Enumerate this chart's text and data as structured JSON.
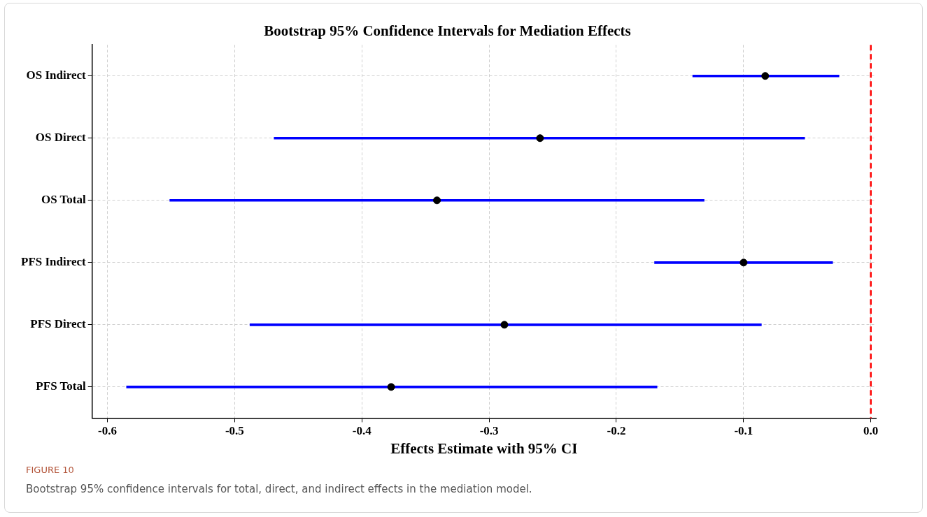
{
  "chart_data": {
    "type": "bar",
    "title": "Bootstrap 95% Confidence Intervals for Mediation Effects",
    "xlabel": "Effects Estimate with 95% CI",
    "orientation": "horizontal",
    "categories": [
      "OS Indirect",
      "OS Direct",
      "OS Total",
      "PFS Indirect",
      "PFS Direct",
      "PFS Total"
    ],
    "series": [
      {
        "color": "#0000ff",
        "base": [
          -0.14,
          -0.469,
          -0.551,
          -0.17,
          -0.488,
          -0.585
        ],
        "values": [
          0.115,
          0.417,
          0.42,
          0.14,
          0.402,
          0.417
        ]
      },
      {
        "type": "scatter",
        "color": "#000000",
        "marker": "circle",
        "values": [
          -0.083,
          -0.26,
          -0.341,
          -0.1,
          -0.288,
          -0.377
        ]
      }
    ],
    "xlim": [
      -0.612,
      0.004
    ],
    "xticks": [
      -0.6,
      -0.5,
      -0.4,
      -0.3,
      -0.2,
      -0.1,
      {
        "value": 0,
        "label": "0.0"
      }
    ],
    "grid": true,
    "legend": false,
    "ref_lines": [
      {
        "axis": "x",
        "value": 0,
        "color": "#ff0000",
        "line_style": "dashed"
      }
    ],
    "annotations": [
      "FIGURE 10",
      "Bootstrap 95% confidence intervals for total, direct, and indirect effects in the mediation model."
    ]
  }
}
